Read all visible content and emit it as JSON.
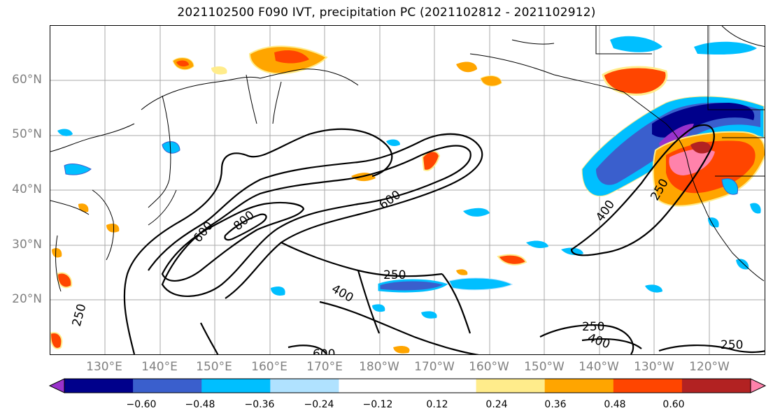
{
  "title": "2021102500 F090 IVT, precipitation PC (2021102812 - 2021102912)",
  "lat_labels": [
    "60°N",
    "50°N",
    "40°N",
    "30°N",
    "20°N"
  ],
  "lon_labels": [
    "130°E",
    "140°E",
    "150°E",
    "160°E",
    "170°E",
    "180°W",
    "170°W",
    "160°W",
    "150°W",
    "140°W",
    "130°W",
    "120°W"
  ],
  "contour_labels": [
    "600",
    "800",
    "600",
    "250",
    "400",
    "250",
    "400",
    "250",
    "400",
    "250",
    "600",
    "250"
  ],
  "colorbar": {
    "colors": [
      "#9932CC",
      "#00008B",
      "#3A5FCD",
      "#00BFFF",
      "#B0E2FF",
      "#FFFFFF",
      "#FFFFFF",
      "#FFEC8B",
      "#FFA500",
      "#FF4500",
      "#B22222",
      "#FF82AB"
    ],
    "tick_labels": [
      "−0.60",
      "−0.48",
      "−0.36",
      "−0.24",
      "−0.12",
      "0.12",
      "0.24",
      "0.36",
      "0.48",
      "0.60"
    ]
  }
}
